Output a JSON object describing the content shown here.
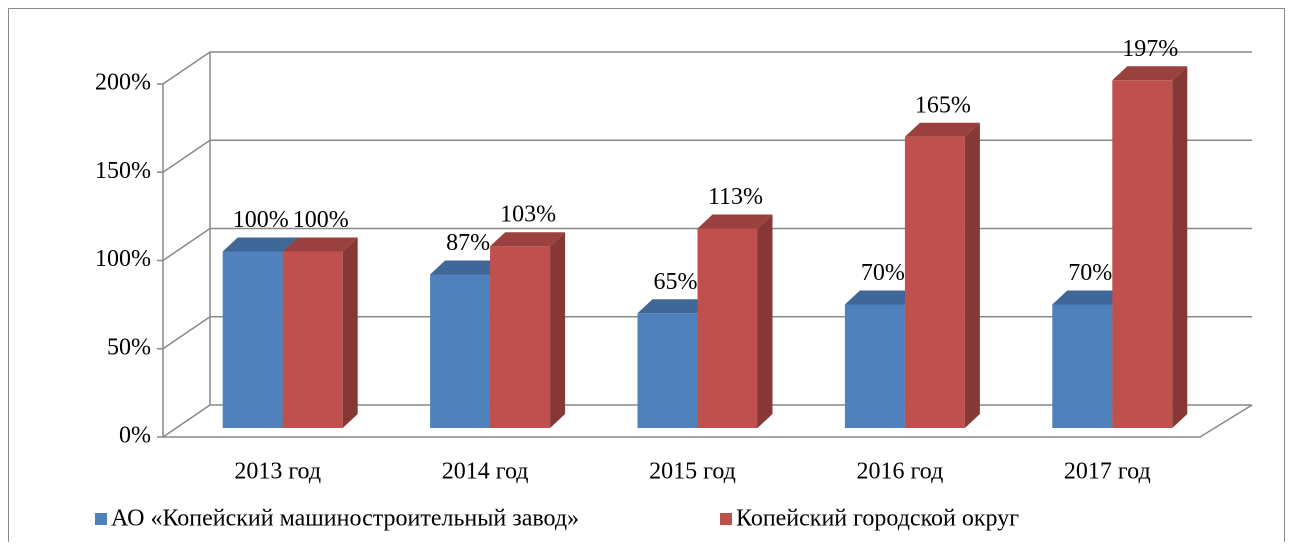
{
  "chart_data": {
    "type": "bar3d",
    "categories": [
      "2013 год",
      "2014 год",
      "2015 год",
      "2016 год",
      "2017 год"
    ],
    "series": [
      {
        "name": "АО «Копейский машиностроительный завод»",
        "color": "#4f81bd",
        "values": [
          100,
          87,
          65,
          70,
          70
        ],
        "value_labels": [
          "100%",
          "87%",
          "65%",
          "70%",
          "70%"
        ]
      },
      {
        "name": "Копейский городской округ",
        "color": "#c0504d",
        "values": [
          100,
          103,
          113,
          165,
          197
        ],
        "value_labels": [
          "100%",
          "103%",
          "113%",
          "165%",
          "197%"
        ]
      }
    ],
    "ylim": [
      0,
      200
    ],
    "yticks": [
      {
        "value": 0,
        "label": "0%"
      },
      {
        "value": 50,
        "label": "50%"
      },
      {
        "value": 100,
        "label": "100%"
      },
      {
        "value": 150,
        "label": "150%"
      },
      {
        "value": 200,
        "label": "200%"
      }
    ],
    "grid": true,
    "legend": "bottom"
  }
}
